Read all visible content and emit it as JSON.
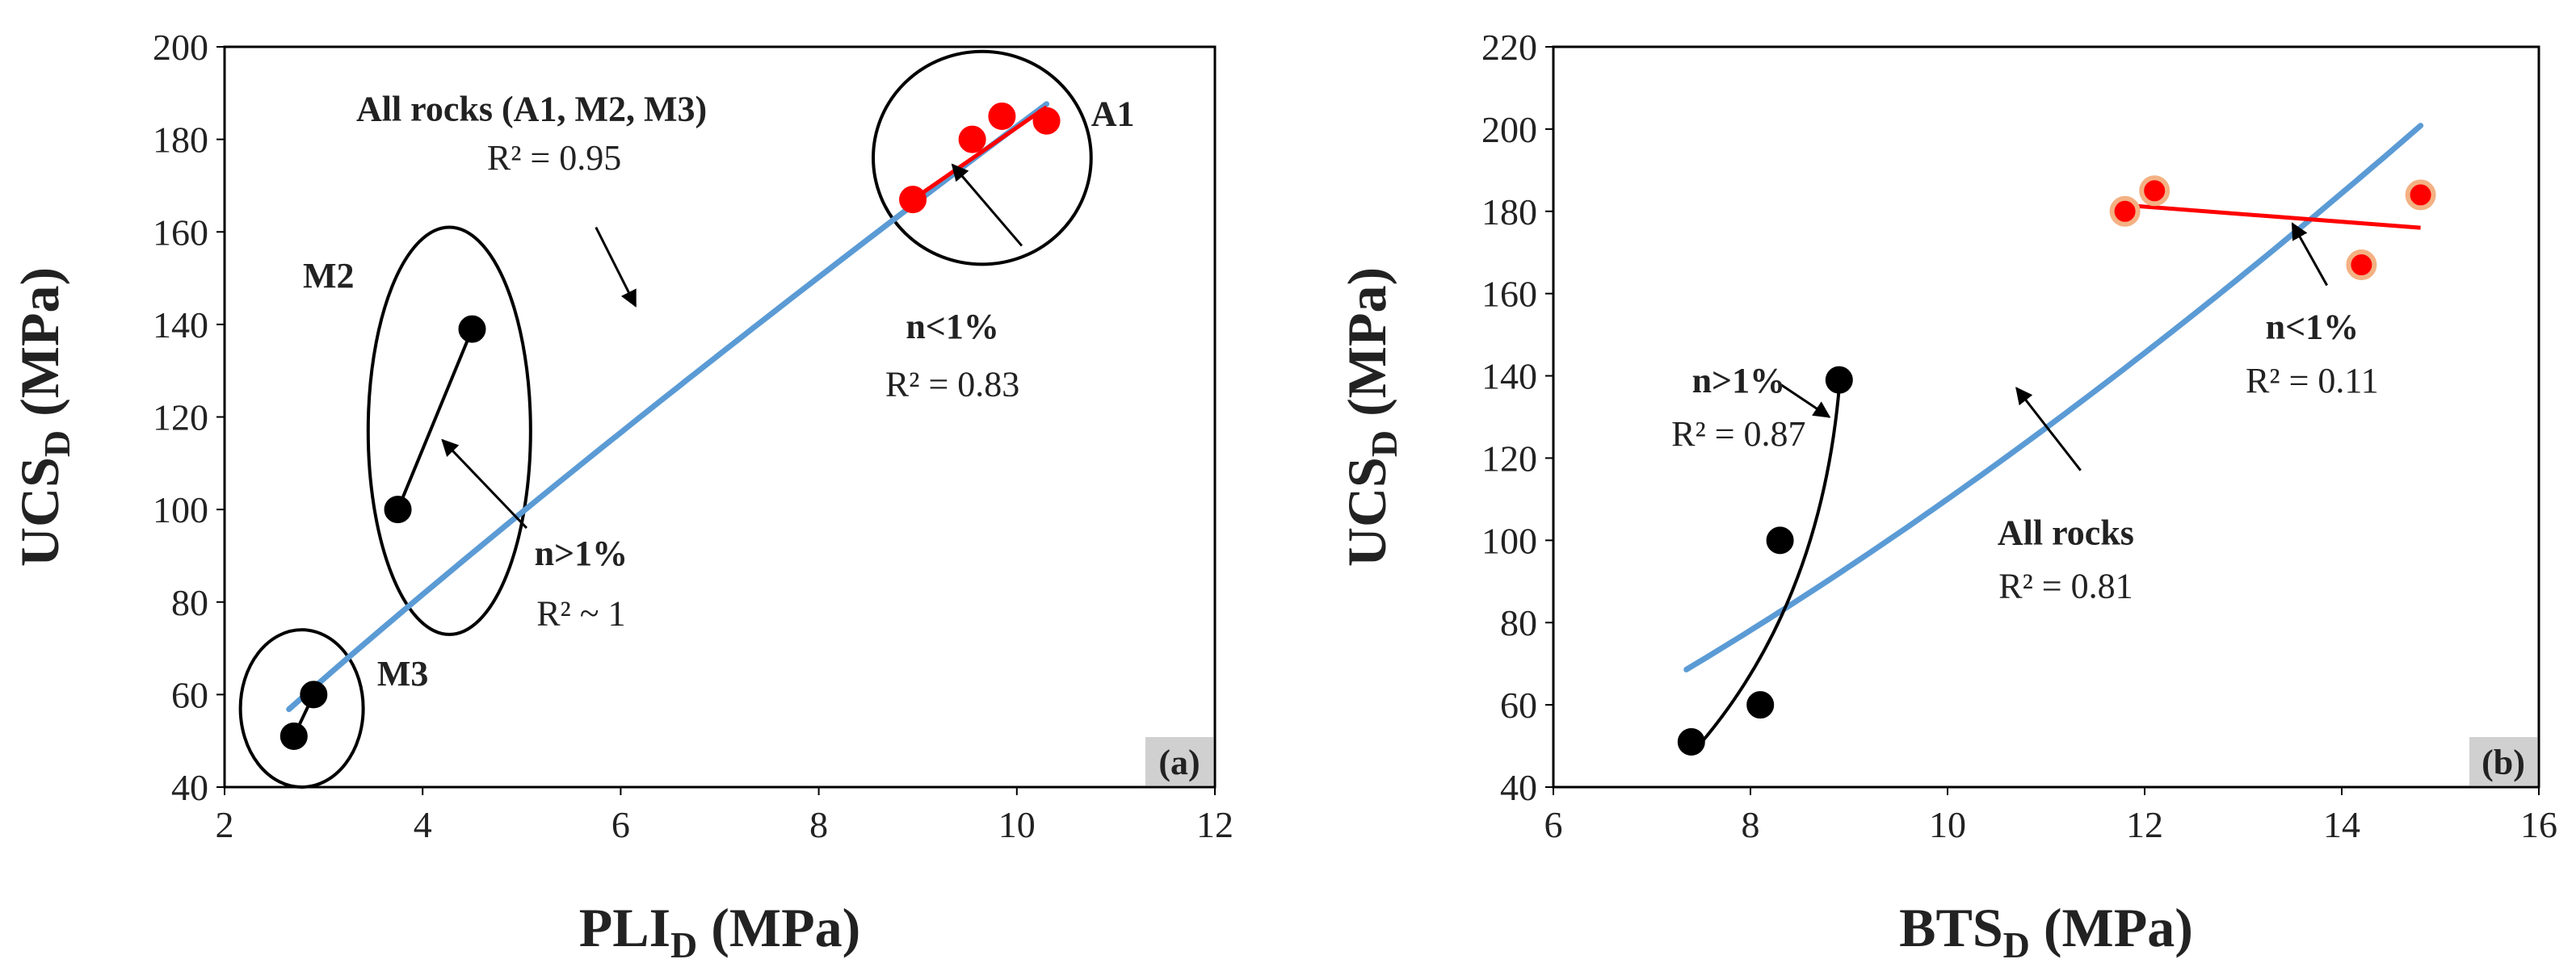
{
  "chart_data": [
    {
      "type": "scatter",
      "panel_label": "(a)",
      "xlabel": {
        "main": "PLI",
        "sub": "D",
        "unit": " (MPa)"
      },
      "ylabel": {
        "main": "UCS",
        "sub": "D",
        "unit": " (MPa)"
      },
      "xlim": [
        2,
        12
      ],
      "ylim": [
        40,
        200
      ],
      "xticks": [
        2,
        4,
        6,
        8,
        10,
        12
      ],
      "yticks": [
        40,
        60,
        80,
        100,
        120,
        140,
        160,
        180,
        200
      ],
      "xtick_labels": [
        "2",
        "4",
        "6",
        "8",
        "10",
        "12"
      ],
      "ytick_labels": [
        "40",
        "60",
        "80",
        "100",
        "120",
        "140",
        "160",
        "180",
        "200"
      ],
      "colors": {
        "all_fit": "#5b9bd5",
        "black": "#000000",
        "red": "#ff0000"
      },
      "series": [
        {
          "name": "A1",
          "marker": "red",
          "x": [
            8.95,
            9.55,
            9.85,
            10.3
          ],
          "y": [
            167,
            180,
            185,
            184
          ]
        },
        {
          "name": "M2",
          "marker": "black",
          "x": [
            3.75,
            4.5
          ],
          "y": [
            100,
            139
          ]
        },
        {
          "name": "M3",
          "marker": "black",
          "x": [
            2.7,
            2.9
          ],
          "y": [
            51,
            60
          ]
        }
      ],
      "fits": [
        {
          "name": "All rocks (A1, M2, M3)",
          "kind": "power",
          "a": 24.1,
          "b": 0.88,
          "x_range": [
            2.65,
            10.3
          ],
          "color": "all_fit"
        },
        {
          "name": "A1 fit",
          "kind": "linear",
          "x": [
            8.95,
            10.3
          ],
          "y": [
            167,
            187
          ],
          "color": "red"
        },
        {
          "name": "M2 fit",
          "kind": "linear",
          "x": [
            3.75,
            4.5
          ],
          "y": [
            100,
            139
          ],
          "color": "black"
        },
        {
          "name": "M3 fit",
          "kind": "linear",
          "x": [
            2.7,
            2.9
          ],
          "y": [
            51,
            60
          ],
          "color": "black"
        }
      ],
      "groups": [
        {
          "name": "A1 group",
          "cx": 9.65,
          "cy": 176,
          "rx": 1.1,
          "ry": 23,
          "rot": 0
        },
        {
          "name": "M2 group",
          "cx": 4.27,
          "cy": 117,
          "rx": 0.82,
          "ry": 44,
          "rot": 0
        },
        {
          "name": "M3 group",
          "cx": 2.78,
          "cy": 57,
          "rx": 0.62,
          "ry": 17,
          "rot": 0
        }
      ],
      "annotations": [
        {
          "name": "all-rocks-title",
          "text": "All rocks (A1, M2, M3)",
          "x": 5.1,
          "y": 184,
          "bold": true,
          "anchor": "middle"
        },
        {
          "name": "all-rocks-r2",
          "text": "R² = 0.95",
          "x": 4.65,
          "y": 173.5,
          "bold": false,
          "anchor": "start"
        },
        {
          "name": "a1-label",
          "text": "A1",
          "x": 10.75,
          "y": 183,
          "bold": true,
          "anchor": "start"
        },
        {
          "name": "a1-n",
          "text": "n<1%",
          "x": 9.35,
          "y": 137,
          "bold": true,
          "anchor": "middle"
        },
        {
          "name": "a1-r2",
          "text": "R² = 0.83",
          "x": 9.35,
          "y": 124.5,
          "bold": false,
          "anchor": "middle"
        },
        {
          "name": "m2-label",
          "text": "M2",
          "x": 3.05,
          "y": 148,
          "bold": true,
          "anchor": "middle"
        },
        {
          "name": "m2-n",
          "text": "n>1%",
          "x": 5.6,
          "y": 88,
          "bold": true,
          "anchor": "middle"
        },
        {
          "name": "m2-r2",
          "text": "R² ~ 1",
          "x": 5.6,
          "y": 75,
          "bold": false,
          "anchor": "middle"
        },
        {
          "name": "m3-label",
          "text": "M3",
          "x": 3.8,
          "y": 62,
          "bold": true,
          "anchor": "middle"
        }
      ],
      "arrows": [
        {
          "name": "arrow-all",
          "from": [
            5.75,
            161
          ],
          "to": [
            6.15,
            144
          ]
        },
        {
          "name": "arrow-a1",
          "from": [
            10.05,
            157
          ],
          "to": [
            9.35,
            174.5
          ]
        },
        {
          "name": "arrow-m2",
          "from": [
            5.05,
            96
          ],
          "to": [
            4.2,
            115
          ]
        }
      ]
    },
    {
      "type": "scatter",
      "panel_label": "(b)",
      "xlabel": {
        "main": "BTS",
        "sub": "D",
        "unit": " (MPa)"
      },
      "ylabel": {
        "main": "UCS",
        "sub": "D",
        "unit": " (MPa)"
      },
      "xlim": [
        6,
        16
      ],
      "ylim": [
        40,
        220
      ],
      "xticks": [
        6,
        8,
        10,
        12,
        14,
        16
      ],
      "yticks": [
        40,
        60,
        80,
        100,
        120,
        140,
        160,
        180,
        200,
        220
      ],
      "xtick_labels": [
        "6",
        "8",
        "10",
        "12",
        "14",
        "16"
      ],
      "ytick_labels": [
        "40",
        "60",
        "80",
        "100",
        "120",
        "140",
        "160",
        "180",
        "200",
        "220"
      ],
      "colors": {
        "all_fit": "#5b9bd5",
        "black": "#000000",
        "red": "#ff0000",
        "orange_edge": "#f4b183"
      },
      "series": [
        {
          "name": "n<1%",
          "marker": "red-orange",
          "x": [
            11.8,
            12.1,
            14.2,
            14.8
          ],
          "y": [
            180,
            185,
            167,
            184
          ]
        },
        {
          "name": "n>1%",
          "marker": "black",
          "x": [
            7.4,
            8.1,
            8.3,
            8.9
          ],
          "y": [
            51,
            60,
            100,
            139
          ]
        }
      ],
      "fits": [
        {
          "name": "All rocks fit",
          "kind": "power",
          "a": 3.21,
          "b": 1.535,
          "x_range": [
            7.35,
            14.8
          ],
          "color": "all_fit"
        },
        {
          "name": "n<1% fit",
          "kind": "linear",
          "x": [
            11.8,
            14.8
          ],
          "y": [
            181.5,
            176
          ],
          "color": "red"
        },
        {
          "name": "n>1% fit",
          "kind": "quadratic",
          "x": [
            7.4,
            8.9
          ],
          "y": [
            48,
            137
          ],
          "ctrl": [
            8.7,
            83
          ],
          "color": "black"
        }
      ],
      "groups": [],
      "annotations": [
        {
          "name": "all-rocks-label",
          "text": "All rocks",
          "x": 11.2,
          "y": 99,
          "bold": true,
          "anchor": "middle"
        },
        {
          "name": "all-rocks-r2",
          "text": "R² = 0.81",
          "x": 11.2,
          "y": 86,
          "bold": false,
          "anchor": "middle"
        },
        {
          "name": "low-n",
          "text": "n<1%",
          "x": 13.7,
          "y": 149,
          "bold": true,
          "anchor": "middle"
        },
        {
          "name": "low-r2",
          "text": "R² = 0.11",
          "x": 13.7,
          "y": 136,
          "bold": false,
          "anchor": "middle"
        },
        {
          "name": "high-n",
          "text": "n>1%",
          "x": 7.88,
          "y": 136,
          "bold": true,
          "anchor": "middle"
        },
        {
          "name": "high-r2",
          "text": "R² = 0.87",
          "x": 7.88,
          "y": 123,
          "bold": false,
          "anchor": "middle"
        }
      ],
      "arrows": [
        {
          "name": "arrow-all",
          "from": [
            11.35,
            117
          ],
          "to": [
            10.7,
            137
          ]
        },
        {
          "name": "arrow-low",
          "from": [
            13.85,
            162
          ],
          "to": [
            13.5,
            177
          ]
        },
        {
          "name": "arrow-high",
          "from": [
            8.3,
            138
          ],
          "to": [
            8.8,
            130
          ]
        }
      ]
    }
  ]
}
